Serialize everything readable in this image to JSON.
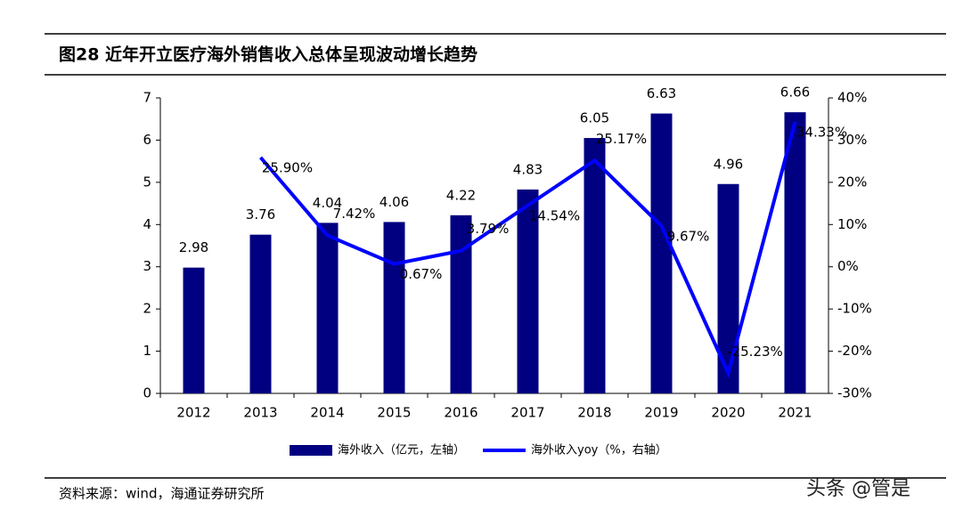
{
  "title": "图28 近年开立医疗海外销售收入总体呈现波动增长趋势",
  "source": "资料来源：wind，海通证券研究所",
  "watermark": "头条 @管是",
  "chart_data": {
    "type": "bar",
    "categories": [
      "2012",
      "2013",
      "2014",
      "2015",
      "2016",
      "2017",
      "2018",
      "2019",
      "2020",
      "2021"
    ],
    "series": [
      {
        "name": "海外收入（亿元，左轴）",
        "type": "bar",
        "color": "#000080",
        "values": [
          2.98,
          3.76,
          4.04,
          4.06,
          4.22,
          4.83,
          6.05,
          6.63,
          4.96,
          6.66
        ]
      },
      {
        "name": "海外收入yoy（%，右轴）",
        "type": "line",
        "axis": "y2",
        "color": "#0000ff",
        "values": [
          null,
          25.9,
          7.42,
          0.67,
          3.79,
          14.54,
          25.17,
          9.67,
          -25.23,
          34.33
        ],
        "value_labels": [
          null,
          "25.90%",
          "7.42%",
          "0.67%",
          "3.79%",
          "14.54%",
          "25.17%",
          "9.67%",
          "-25.23%",
          "34.33%"
        ]
      }
    ],
    "ylim": [
      0,
      7
    ],
    "yticks": [
      0,
      1,
      2,
      3,
      4,
      5,
      6,
      7
    ],
    "y2lim": [
      -30,
      40
    ],
    "y2ticks": [
      {
        "value": -30,
        "label": "-30%"
      },
      {
        "value": -20,
        "label": "-20%"
      },
      {
        "value": -10,
        "label": "-10%"
      },
      {
        "value": 0,
        "label": "0%"
      },
      {
        "value": 10,
        "label": "10%"
      },
      {
        "value": 20,
        "label": "20%"
      },
      {
        "value": 30,
        "label": "30%"
      },
      {
        "value": 40,
        "label": "40%"
      }
    ]
  }
}
